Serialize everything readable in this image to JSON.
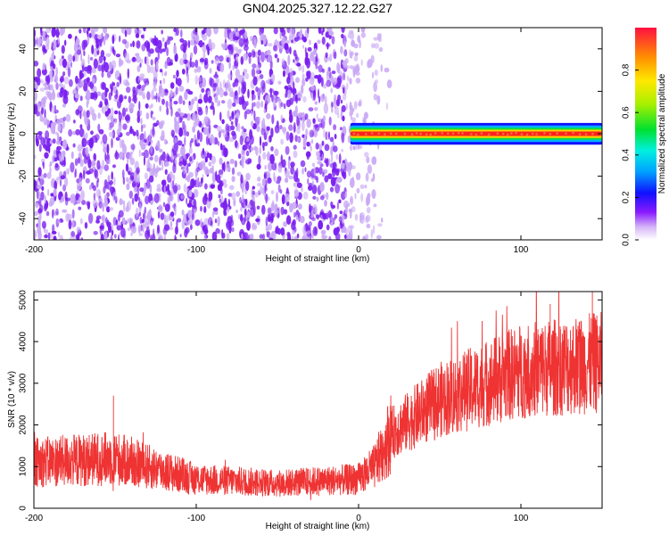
{
  "figure_title": "GN04.2025.327.12.22.G27",
  "colors": {
    "snr_line": "#ef3333",
    "blob": "#7a1ff0",
    "blob_light": "#c9a8f5"
  },
  "chart_data": [
    {
      "type": "heatmap",
      "title": "GN04.2025.327.12.22.G27",
      "xlabel": "Height of straight line (km)",
      "ylabel": "Frequency (Hz)",
      "xlim": [
        -200,
        150
      ],
      "ylim": [
        -50,
        50
      ],
      "xticks": [
        -200,
        -100,
        0,
        100
      ],
      "yticks": [
        -40,
        -20,
        0,
        20,
        40
      ],
      "noise_region_km": [
        -200,
        20
      ],
      "signal_band": {
        "x_start_km": -5,
        "x_end_km": 150,
        "frequency_hz": 0,
        "half_width_hz": 3
      },
      "colorbar": {
        "label": "Normalized spectral amplitude",
        "range": [
          0.0,
          1.0
        ],
        "ticks": [
          "0.0",
          "0.2",
          "0.4",
          "0.6",
          "0.8"
        ]
      }
    },
    {
      "type": "line",
      "xlabel": "Height of straight line (km)",
      "ylabel": "SNR (10 * v/v)",
      "xlim": [
        -200,
        150
      ],
      "ylim": [
        0,
        5200
      ],
      "xticks": [
        -200,
        -100,
        0,
        100
      ],
      "yticks": [
        0,
        1000,
        2000,
        3000,
        4000,
        5000
      ],
      "trend": {
        "x": [
          -200,
          -150,
          -100,
          -50,
          0,
          10,
          20,
          50,
          100,
          150
        ],
        "y": [
          1100,
          1200,
          700,
          600,
          700,
          1000,
          1800,
          2600,
          3300,
          3500
        ]
      },
      "peaks": [
        [
          -151,
          2700
        ],
        [
          118,
          4900
        ],
        [
          144,
          5200
        ]
      ]
    }
  ]
}
